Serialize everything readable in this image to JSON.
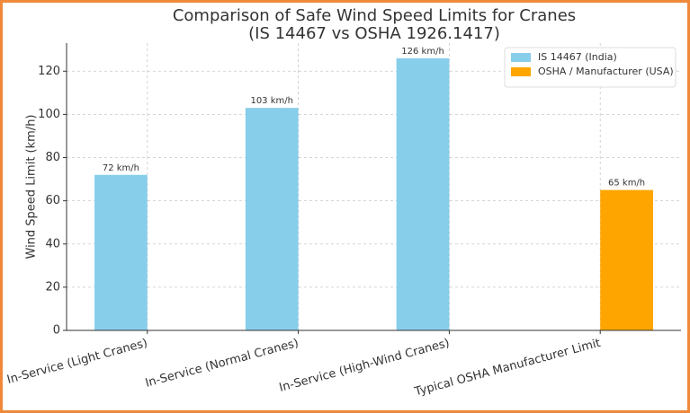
{
  "chart_data": {
    "type": "bar",
    "title": "Comparison of Safe Wind Speed Limits for Cranes",
    "subtitle": "(IS 14467 vs OSHA 1926.1417)",
    "y_label": "Wind Speed Limit (km/h)",
    "categories": [
      "In-Service (Light Cranes)",
      "In-Service (Normal Cranes)",
      "In-Service (High-Wind Cranes)",
      "Typical OSHA Manufacturer Limit"
    ],
    "series": [
      {
        "name": "IS 14467 (India)",
        "color": "#87ceeb",
        "values": [
          72,
          103,
          126,
          null
        ],
        "value_labels": [
          "72 km/h",
          "103 km/h",
          "126 km/h",
          null
        ]
      },
      {
        "name": "OSHA / Manufacturer (USA)",
        "color": "#ffa500",
        "values": [
          null,
          null,
          null,
          65
        ],
        "value_labels": [
          null,
          null,
          null,
          "65 km/h"
        ]
      }
    ],
    "ylim": [
      0,
      133
    ],
    "yticks": [
      0,
      20,
      40,
      60,
      80,
      100,
      120
    ],
    "grid": true,
    "legend": "upper right"
  }
}
